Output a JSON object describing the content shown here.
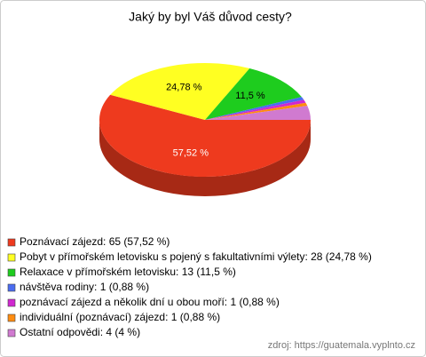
{
  "chart_data": {
    "type": "pie3d",
    "title": "Jaký by byl Váš důvod cesty?",
    "categories": [
      "Poznávací zájezd: 65 (57,52 %)",
      "Pobyt v přímořském letovisku s pojený s fakultativními výlety: 28 (24,78 %)",
      "Relaxace v přímořském letovisku: 13 (11,5 %)",
      "návštěva rodiny: 1 (0,88 %)",
      "poznávací zájezd a několik dní u obou moří: 1 (0,88 %)",
      "individuální (poznávací) zájezd: 1 (0,88 %)",
      "Ostatní odpovědi: 4 (4 %)"
    ],
    "values": [
      57.52,
      24.78,
      11.5,
      0.88,
      0.88,
      0.88,
      4
    ],
    "value_labels": [
      "57,52 %",
      "24,78 %",
      "11,5 %",
      null,
      null,
      null,
      null
    ],
    "colors": [
      "#ee3a1e",
      "#ffff22",
      "#1ecc1e",
      "#4a6cf0",
      "#d028d0",
      "#ff8c10",
      "#d07ad0"
    ],
    "source": "zdroj: https://guatemala.vyplnto.cz"
  }
}
